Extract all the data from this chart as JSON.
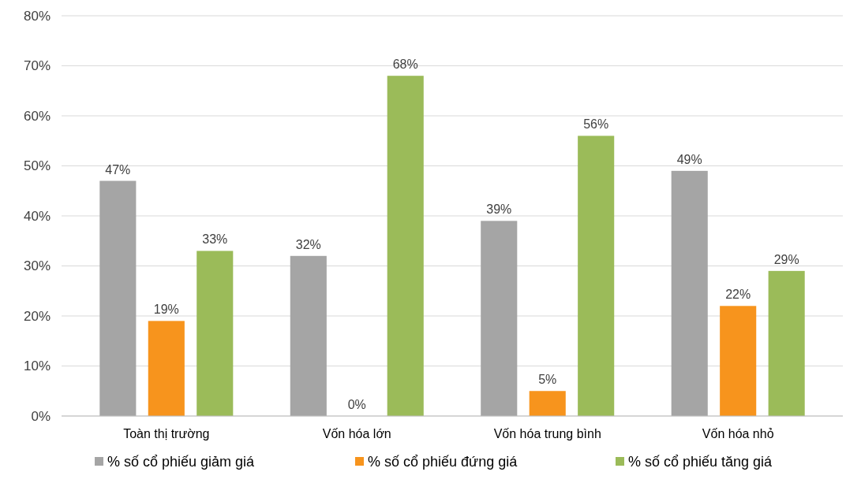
{
  "chart_data": {
    "type": "bar",
    "categories": [
      "Toàn thị trường",
      "Vốn hóa lớn",
      "Vốn hóa trung bình",
      "Vốn hóa nhỏ"
    ],
    "series": [
      {
        "name": "% số cổ phiếu giảm giá",
        "color": "#a5a5a5",
        "values": [
          47,
          32,
          39,
          49
        ],
        "value_labels": [
          "47%",
          "32%",
          "39%",
          "49%"
        ]
      },
      {
        "name": "% số cổ phiếu đứng giá",
        "color": "#f7941d",
        "values": [
          19,
          0,
          5,
          22
        ],
        "value_labels": [
          "19%",
          "0%",
          "5%",
          "22%"
        ]
      },
      {
        "name": "% số cổ phiếu tăng giá",
        "color": "#9bbb59",
        "values": [
          33,
          68,
          56,
          29
        ],
        "value_labels": [
          "33%",
          "68%",
          "56%",
          "29%"
        ]
      }
    ],
    "ylim": [
      0,
      80
    ],
    "yticks": [
      {
        "value": 0,
        "label": "0%"
      },
      {
        "value": 10,
        "label": "10%"
      },
      {
        "value": 20,
        "label": "20%"
      },
      {
        "value": 30,
        "label": "30%"
      },
      {
        "value": 40,
        "label": "40%"
      },
      {
        "value": 50,
        "label": "50%"
      },
      {
        "value": 60,
        "label": "60%"
      },
      {
        "value": 70,
        "label": "70%"
      },
      {
        "value": 80,
        "label": "80%"
      }
    ],
    "grid": "y",
    "legend": "bottom"
  }
}
